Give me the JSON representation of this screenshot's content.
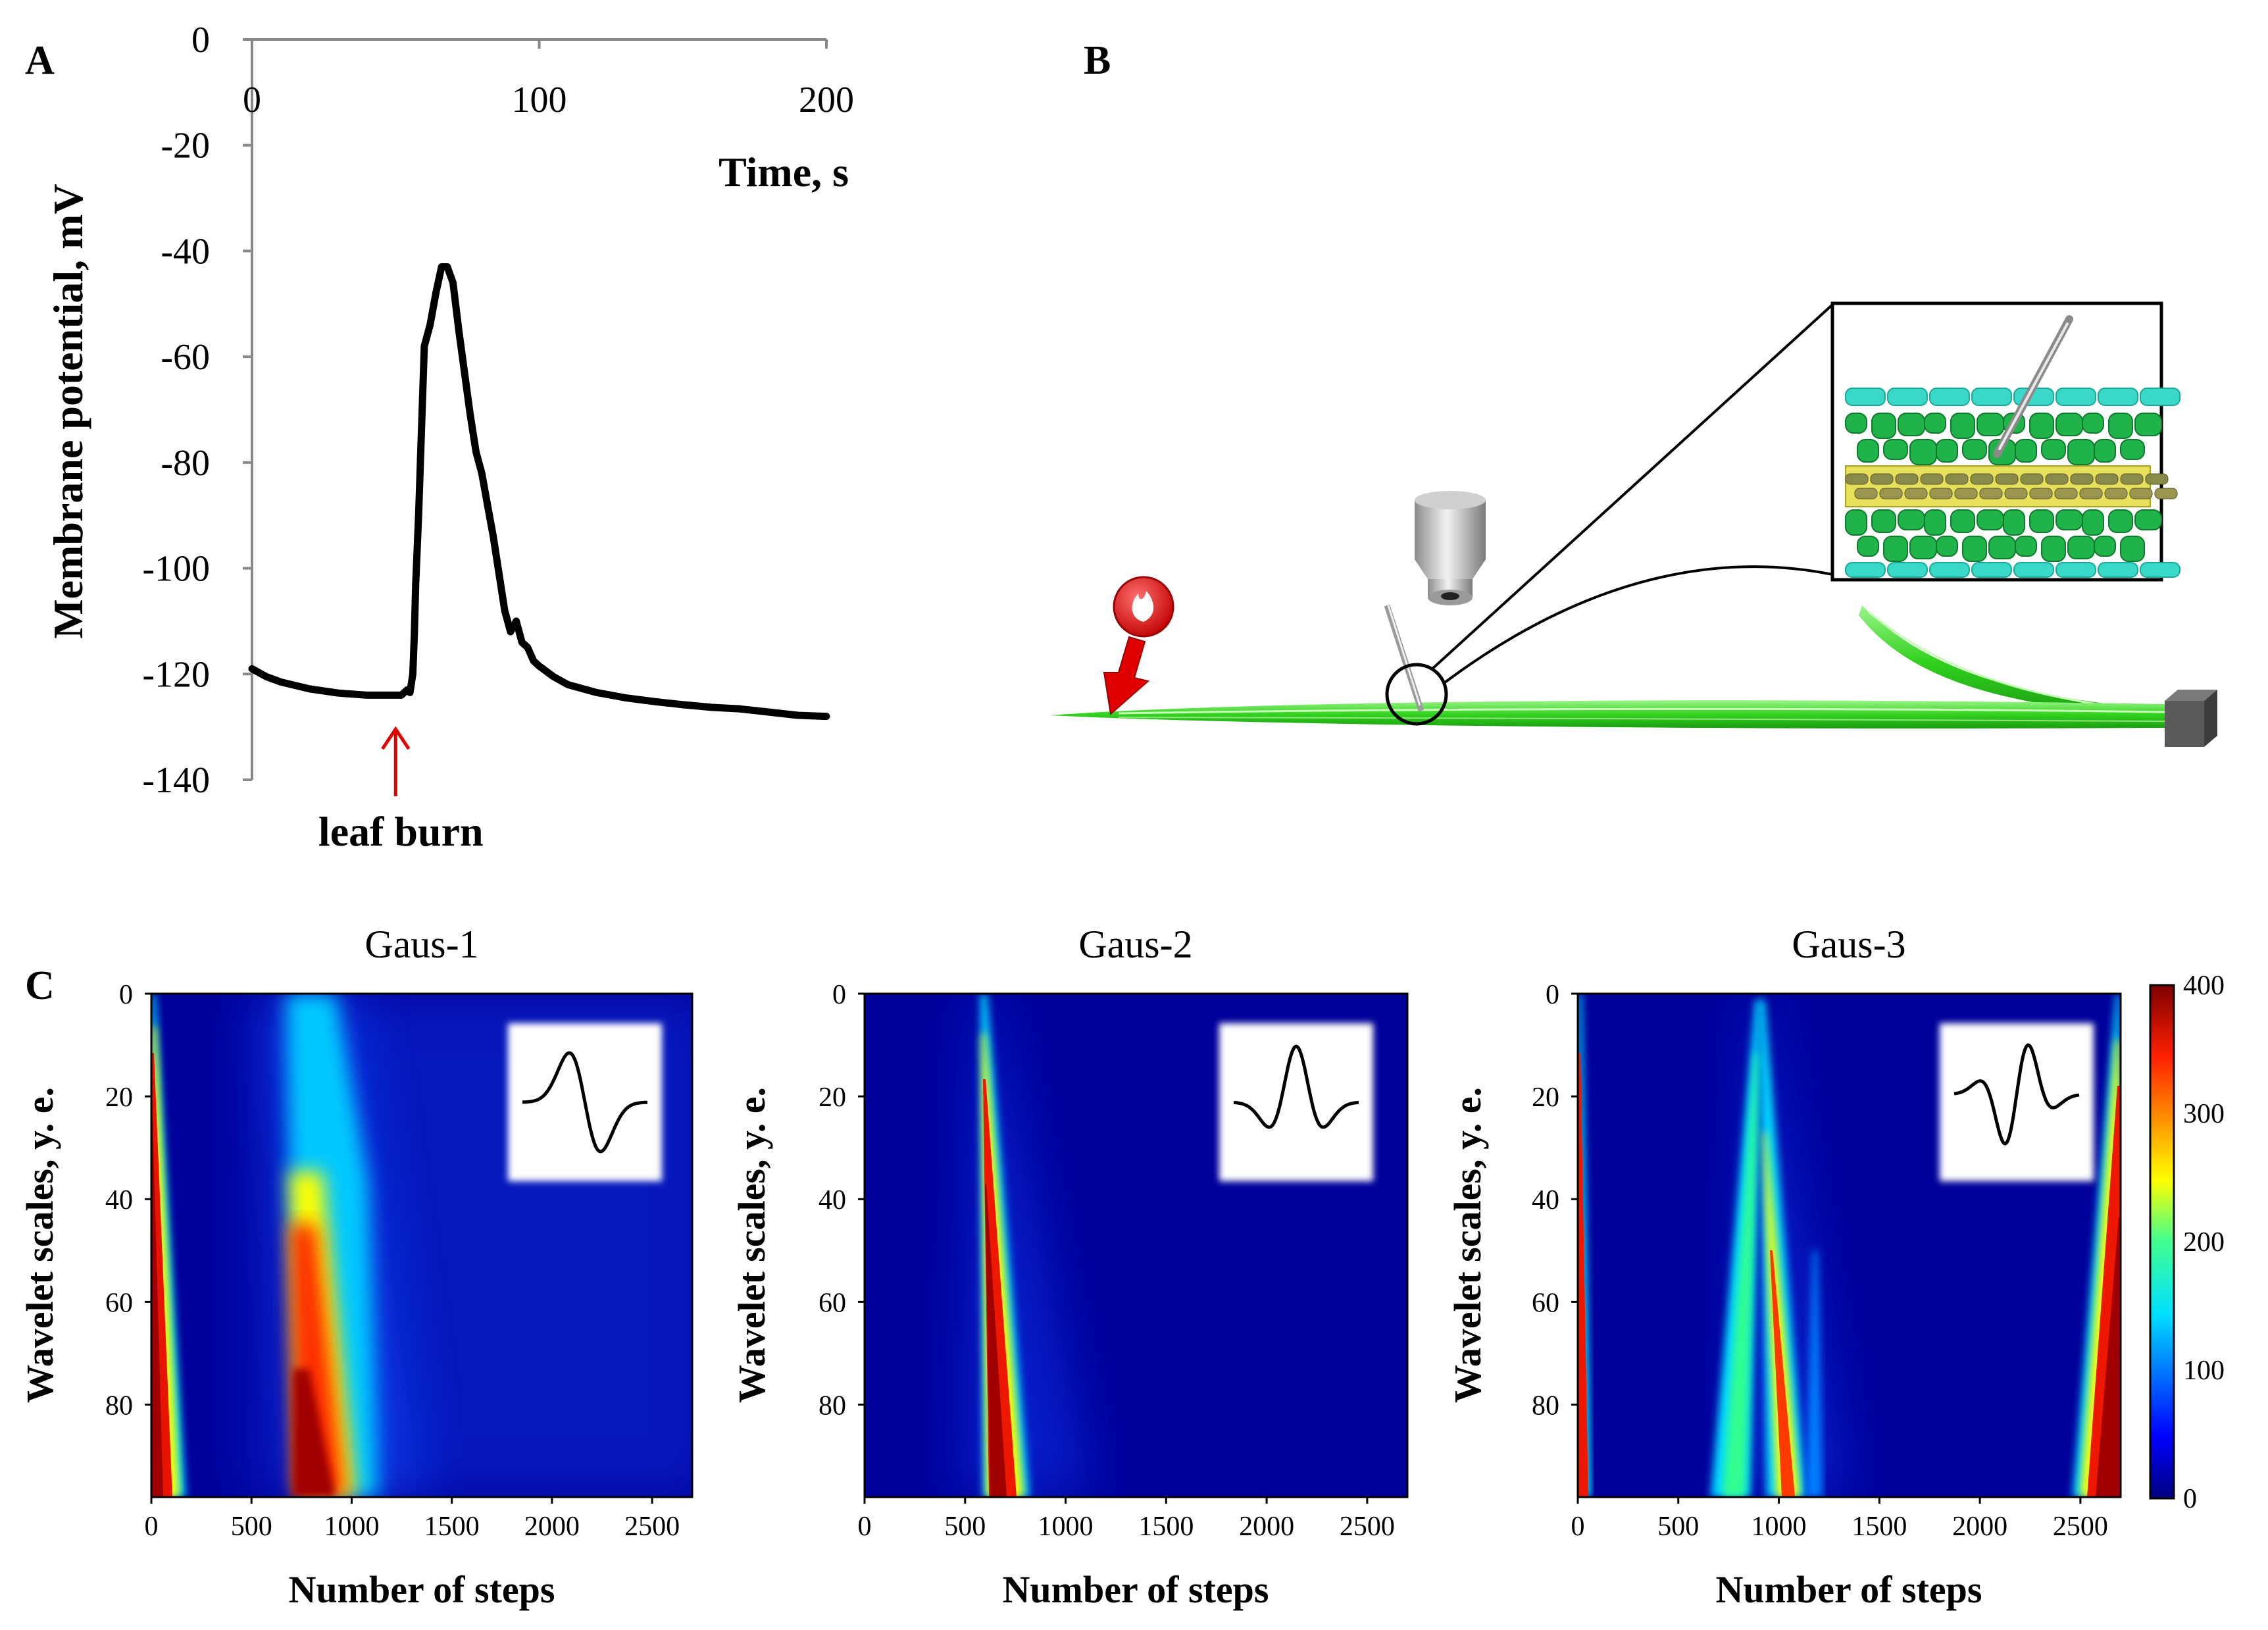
{
  "panels": {
    "a": "A",
    "b": "B",
    "c": "C"
  },
  "chart_data": [
    {
      "type": "line",
      "panel": "A",
      "xlabel": "Time, s",
      "ylabel": "Membrane potential, mV",
      "xlim": [
        0,
        200
      ],
      "ylim": [
        -140,
        0
      ],
      "x_ticks": [
        0,
        100,
        200
      ],
      "y_ticks": [
        0,
        -20,
        -40,
        -60,
        -80,
        -100,
        -120,
        -140
      ],
      "x_axis_position": "top",
      "annotation": "leaf burn",
      "annotation_x": 50,
      "annotation_color": "#e00000",
      "line_color": "#000000",
      "series": [
        {
          "x": [
            0,
            5,
            10,
            20,
            30,
            40,
            50,
            52,
            54,
            55,
            56,
            56.5,
            57,
            58,
            60,
            62,
            64,
            66,
            68,
            70,
            72,
            74,
            76,
            78,
            80,
            82,
            84,
            86,
            88,
            90,
            92,
            94,
            96,
            98,
            100,
            105,
            110,
            120,
            130,
            140,
            150,
            160,
            170,
            180,
            190,
            200
          ],
          "y": [
            -119,
            -120.5,
            -121.5,
            -122.8,
            -123.6,
            -124,
            -124,
            -124,
            -123,
            -123.5,
            -120,
            -113,
            -103,
            -90,
            -58,
            -54,
            -48,
            -43,
            -43,
            -46,
            -55,
            -63,
            -71,
            -78,
            -82,
            -88,
            -94,
            -101,
            -108,
            -112,
            -110,
            -114,
            -115,
            -117.5,
            -118.5,
            -120.5,
            -122,
            -123.5,
            -124.5,
            -125.2,
            -125.8,
            -126.3,
            -126.6,
            -127.2,
            -127.8,
            -128
          ]
        }
      ]
    },
    {
      "type": "heatmap",
      "panel": "C",
      "title": "Gaus-1",
      "xlabel": "Number of steps",
      "ylabel": "Wavelet scales, y. e.",
      "xlim": [
        0,
        2700
      ],
      "ylim": [
        0,
        98
      ],
      "x_ticks": [
        0,
        500,
        1000,
        1500,
        2000,
        2500
      ],
      "y_ticks": [
        0,
        20,
        40,
        60,
        80
      ],
      "wavelet_icon": "gaus1-wavelet-icon"
    },
    {
      "type": "heatmap",
      "panel": "C",
      "title": "Gaus-2",
      "xlabel": "Number of steps",
      "ylabel": "Wavelet scales, y. e.",
      "xlim": [
        0,
        2700
      ],
      "ylim": [
        0,
        98
      ],
      "x_ticks": [
        0,
        500,
        1000,
        1500,
        2000,
        2500
      ],
      "y_ticks": [
        0,
        20,
        40,
        60,
        80
      ],
      "wavelet_icon": "gaus2-wavelet-icon"
    },
    {
      "type": "heatmap",
      "panel": "C",
      "title": "Gaus-3",
      "xlabel": "Number of steps",
      "ylabel": "Wavelet scales, y. e.",
      "xlim": [
        0,
        2700
      ],
      "ylim": [
        0,
        98
      ],
      "x_ticks": [
        0,
        500,
        1000,
        1500,
        2000,
        2500
      ],
      "y_ticks": [
        0,
        20,
        40,
        60,
        80
      ],
      "wavelet_icon": "gaus3-wavelet-icon"
    }
  ],
  "colorbar": {
    "range": [
      0,
      400
    ],
    "ticks": [
      0,
      100,
      200,
      300,
      400
    ],
    "colormap": "jet"
  },
  "diagram_icons": [
    "burn-marker-icon",
    "microscope-objective-icon",
    "leaf-cross-section-inset",
    "micro-electrode-icon",
    "leaf-blade",
    "leaf-holder-clamp"
  ]
}
